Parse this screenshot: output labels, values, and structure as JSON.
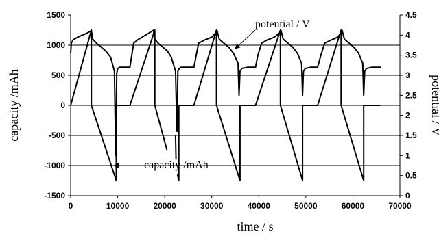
{
  "chart_data": {
    "type": "line",
    "title": "",
    "xlabel": "time / s",
    "ylabel_left": "capacity /mAh",
    "ylabel_right": "potential / V",
    "xlim": [
      0,
      70000
    ],
    "ylim_left": [
      -1500,
      1500
    ],
    "ylim_right": [
      0,
      4.5
    ],
    "xticks": [
      "0",
      "10000",
      "20000",
      "30000",
      "40000",
      "50000",
      "60000",
      "70000"
    ],
    "yticks_left": [
      "1500",
      "1000",
      "500",
      "0",
      "-500",
      "-1000",
      "-1500"
    ],
    "yticks_right": [
      "4.5",
      "4",
      "3.5",
      "3",
      "2.5",
      "2",
      "1.5",
      "1",
      "0.5",
      "0"
    ],
    "grid": "horizontal",
    "annotations": [
      {
        "text": "potential / V",
        "points_to": "potential / V"
      },
      {
        "text": "capacity /mAh",
        "points_to": "capacity /mAh"
      }
    ],
    "series": [
      {
        "name": "potential / V",
        "axis": "right",
        "x": [
          0,
          150,
          500,
          1500,
          2500,
          3500,
          4200,
          4400,
          4700,
          5500,
          6500,
          7500,
          8500,
          9300,
          9600,
          9800,
          10000,
          10400,
          11600,
          12600,
          13000,
          13400,
          14200,
          15200,
          16200,
          17300,
          17600,
          17900,
          18600,
          19600,
          20600,
          21400,
          22300,
          22600,
          22800,
          23100,
          23500,
          24600,
          26200,
          26700,
          27200,
          28500,
          30000,
          30800,
          31100,
          31600,
          32600,
          33600,
          34600,
          35600,
          35800,
          36000,
          36400,
          37600,
          39300,
          39800,
          40600,
          41800,
          43300,
          44400,
          44700,
          45200,
          46200,
          47200,
          48200,
          49100,
          49300,
          49500,
          49900,
          51000,
          52500,
          53200,
          54000,
          55400,
          56800,
          57400,
          57700,
          58200,
          59200,
          60200,
          61200,
          62100,
          62300,
          62500,
          62900,
          64000,
          66000
        ],
        "y": [
          3.55,
          3.8,
          3.88,
          3.95,
          4.0,
          4.05,
          4.1,
          4.12,
          3.9,
          3.8,
          3.7,
          3.6,
          3.45,
          3.1,
          1.0,
          3.05,
          3.17,
          3.2,
          3.2,
          3.2,
          3.5,
          3.8,
          3.88,
          3.95,
          4.02,
          4.1,
          4.12,
          3.9,
          3.8,
          3.7,
          3.6,
          3.45,
          3.1,
          1.6,
          3.1,
          3.17,
          3.2,
          3.2,
          3.2,
          3.5,
          3.8,
          3.88,
          3.95,
          4.05,
          4.12,
          3.9,
          3.8,
          3.7,
          3.55,
          3.3,
          2.5,
          3.1,
          3.17,
          3.2,
          3.2,
          3.5,
          3.8,
          3.88,
          3.95,
          4.05,
          4.12,
          3.9,
          3.8,
          3.7,
          3.55,
          3.3,
          2.5,
          3.1,
          3.17,
          3.2,
          3.2,
          3.5,
          3.8,
          3.88,
          3.95,
          4.05,
          4.12,
          3.9,
          3.8,
          3.7,
          3.55,
          3.3,
          2.5,
          3.1,
          3.17,
          3.2,
          3.2
        ]
      },
      {
        "name": "capacity /mAh",
        "axis": "left",
        "x": [
          0,
          4400,
          4400,
          9700,
          9700,
          12600,
          12600,
          17900,
          17900,
          20500,
          null,
          22300,
          22400,
          null,
          22700,
          23000,
          23000,
          26200,
          26200,
          31000,
          31000,
          36000,
          36000,
          39300,
          39300,
          44600,
          44600,
          49300,
          49300,
          52500,
          52500,
          57500,
          57500,
          62300,
          62300,
          65800
        ],
        "y": [
          0,
          1250,
          0,
          -1250,
          0,
          0,
          0,
          1250,
          0,
          -750,
          null,
          -500,
          -900,
          null,
          -1150,
          -1250,
          0,
          0,
          0,
          1250,
          0,
          -1250,
          0,
          0,
          0,
          1250,
          0,
          -1250,
          0,
          0,
          0,
          1250,
          0,
          -1250,
          0,
          0
        ]
      }
    ]
  }
}
